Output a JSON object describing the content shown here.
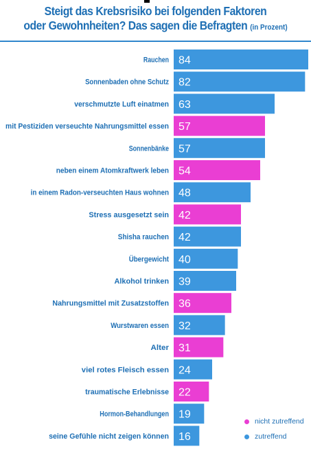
{
  "title_line1": "Steigt das Krebsrisiko bei folgenden Faktoren",
  "title_line2": "oder Gewohnheiten? Das sagen die Befragten",
  "title_unit": "(in Prozent)",
  "colors": {
    "title": "#1e6fb4",
    "zutreffend": "#3d97de",
    "nicht_zutreffend": "#ea3ed3",
    "label": "#1e6fb4",
    "value_text": "#ffffff",
    "divider": "#2f86cc"
  },
  "legend": [
    {
      "label": "nicht zutreffend",
      "group": "nicht_zutreffend"
    },
    {
      "label": "zutreffend",
      "group": "zutreffend"
    }
  ],
  "chart_data": {
    "type": "bar",
    "orientation": "horizontal",
    "title": "Steigt das Krebsrisiko bei folgenden Faktoren oder Gewohnheiten? Das sagen die Befragten (in Prozent)",
    "unit": "in Prozent",
    "xlim": [
      0,
      84
    ],
    "grid": false,
    "legend_position": "bottom-right",
    "categories": [
      "Rauchen",
      "Sonnenbaden ohne Schutz",
      "verschmutzte Luft einatmen",
      "mit Pestiziden verseuchte Nahrungsmittel essen",
      "Sonnenbänke",
      "neben einem Atomkraftwerk leben",
      "in einem Radon-verseuchten Haus wohnen",
      "Stress ausgesetzt sein",
      "Shisha rauchen",
      "Übergewicht",
      "Alkohol trinken",
      "Nahrungsmittel mit Zusatzstoffen",
      "Wurstwaren essen",
      "Alter",
      "viel rotes Fleisch essen",
      "traumatische Erlebnisse",
      "Hormon-Behandlungen",
      "seine Gefühle nicht zeigen können"
    ],
    "values": [
      84,
      82,
      63,
      57,
      57,
      54,
      48,
      42,
      42,
      40,
      39,
      36,
      32,
      31,
      24,
      22,
      19,
      16
    ],
    "groups": [
      "zutreffend",
      "zutreffend",
      "zutreffend",
      "nicht_zutreffend",
      "zutreffend",
      "nicht_zutreffend",
      "zutreffend",
      "nicht_zutreffend",
      "zutreffend",
      "zutreffend",
      "zutreffend",
      "nicht_zutreffend",
      "zutreffend",
      "nicht_zutreffend",
      "zutreffend",
      "nicht_zutreffend",
      "zutreffend",
      "zutreffend"
    ]
  }
}
